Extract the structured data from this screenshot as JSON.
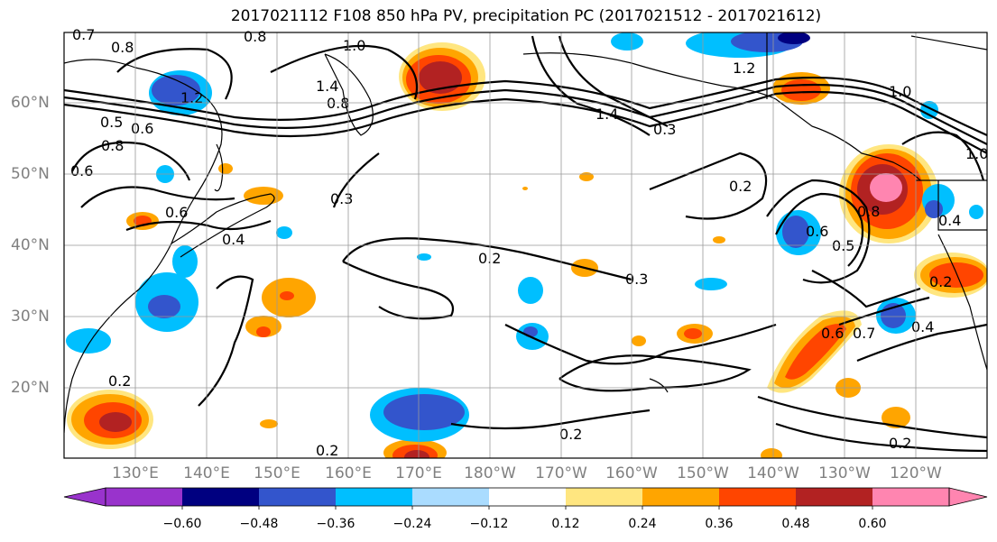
{
  "title": "2017021112 F108 850 hPa PV, precipitation PC (2017021512 - 2017021612)",
  "lat_labels": [
    "60°N",
    "50°N",
    "40°N",
    "30°N",
    "20°N"
  ],
  "lon_labels": [
    "130°E",
    "140°E",
    "150°E",
    "160°E",
    "170°E",
    "180°W",
    "170°W",
    "160°W",
    "150°W",
    "140°W",
    "130°W",
    "120°W"
  ],
  "colorbar": {
    "ticks": [
      "−0.60",
      "−0.48",
      "−0.36",
      "−0.24",
      "−0.12",
      "0.12",
      "0.24",
      "0.36",
      "0.48",
      "0.60"
    ],
    "colors": [
      "#9933cc",
      "#000080",
      "#3355cc",
      "#00bfff",
      "#aadcff",
      "#ffffff",
      "#ffe680",
      "#ffa500",
      "#ff4500",
      "#b22222",
      "#ff85b0"
    ]
  },
  "contour_labels": [
    "0.7",
    "0.8",
    "0.8",
    "1.0",
    "1.2",
    "1.4",
    "0.8",
    "0.5",
    "0.6",
    "0.8",
    "0.6",
    "0.6",
    "0.4",
    "0.3",
    "0.2",
    "0.3",
    "1.4",
    "0.3",
    "1.2",
    "1.0",
    "0.2",
    "0.6",
    "0.5",
    "0.8",
    "0.4",
    "0.2",
    "0.6",
    "0.7",
    "0.4",
    "0.2",
    "0.2",
    "0.2",
    "0.2",
    "1.0"
  ]
}
